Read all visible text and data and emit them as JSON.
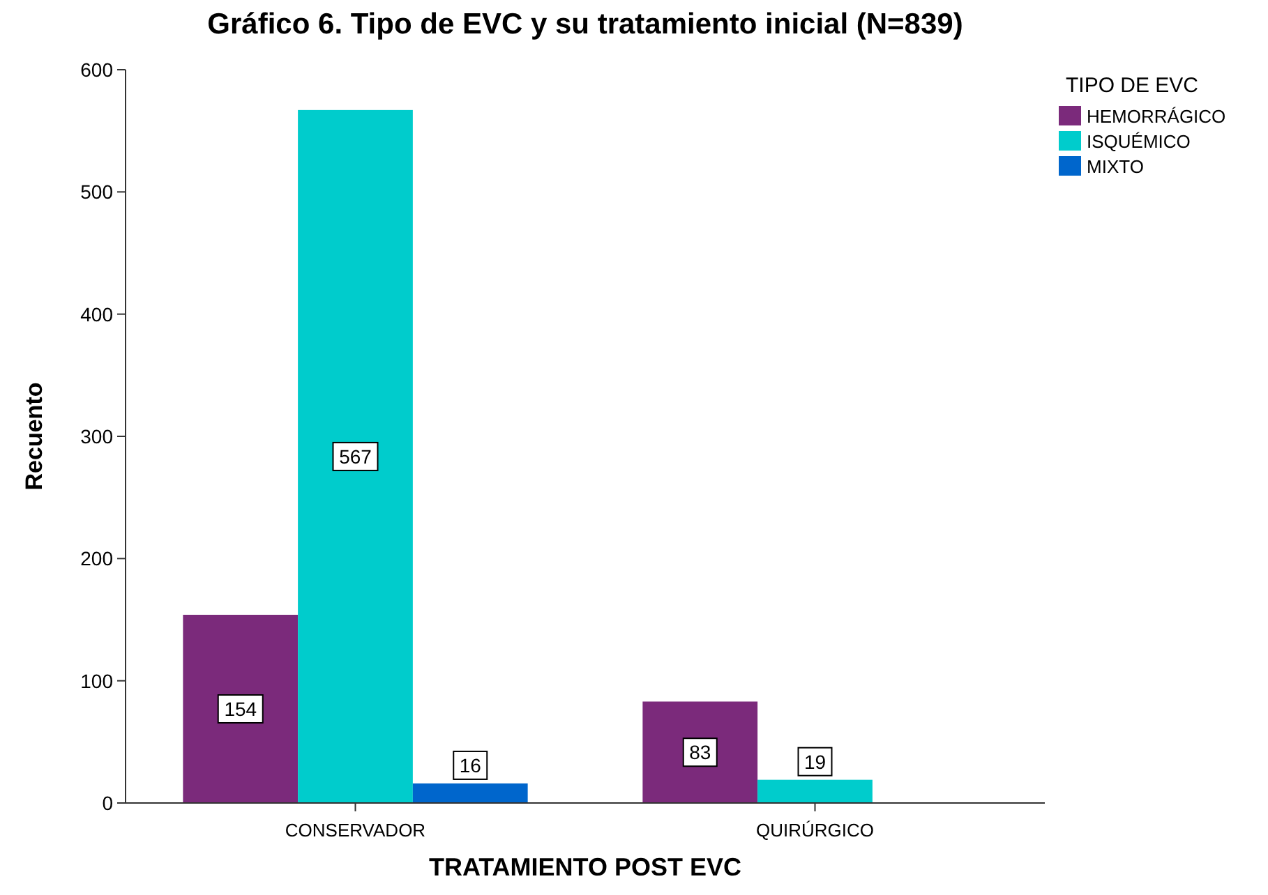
{
  "chart_data": {
    "type": "bar",
    "title": "Gráfico 6. Tipo de EVC y su  tratamiento inicial (N=839)",
    "xlabel": "TRATAMIENTO POST EVC",
    "ylabel": "Recuento",
    "legend_title": "TIPO DE EVC",
    "categories": [
      "CONSERVADOR",
      "QUIRÚRGICO"
    ],
    "series": [
      {
        "name": "HEMORRÁGICO",
        "color": "#7b2a7b",
        "values": [
          154,
          83
        ]
      },
      {
        "name": "ISQUÉMICO",
        "color": "#00cccc",
        "values": [
          567,
          19
        ]
      },
      {
        "name": "MIXTO",
        "color": "#0066cc",
        "values": [
          16,
          null
        ]
      }
    ],
    "ylim": [
      0,
      600
    ],
    "yticks": [
      0,
      100,
      200,
      300,
      400,
      500,
      600
    ],
    "data_labels": true,
    "legend": "top right"
  }
}
